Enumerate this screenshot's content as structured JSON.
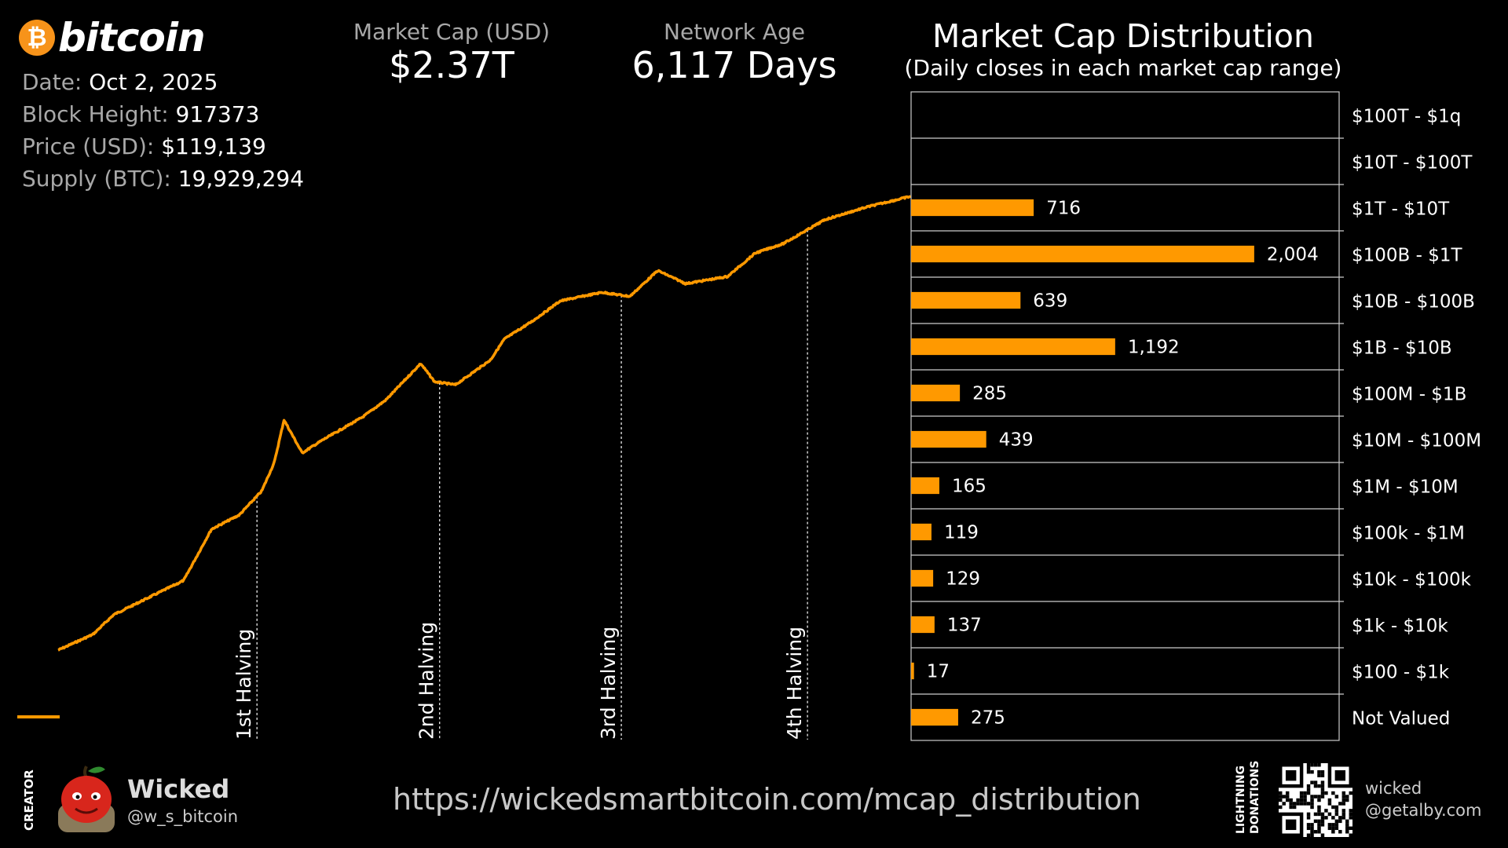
{
  "logo": {
    "symbol": "₿",
    "text": "bitcoin"
  },
  "info": [
    {
      "label": "Date:",
      "value": "Oct 2, 2025"
    },
    {
      "label": "Block Height:",
      "value": "917373"
    },
    {
      "label": "Price (USD):",
      "value": "$119,139"
    },
    {
      "label": "Supply (BTC):",
      "value": "19,929,294"
    }
  ],
  "stats": {
    "market_cap_label": "Market Cap (USD)",
    "market_cap_value": "$2.37T",
    "network_age_label": "Network Age",
    "network_age_value": "6,117 Days"
  },
  "distribution": {
    "title": "Market Cap Distribution",
    "subtitle": "(Daily closes in each market cap range)"
  },
  "colors": {
    "accent": "#ff9900",
    "background": "#000000",
    "muted": "#a8a8a8",
    "grid": "#cccccc"
  },
  "chart_data": [
    {
      "type": "line",
      "title": "",
      "series": [
        {
          "name": "",
          "x": [
            0,
            250,
            400,
            900,
            1100,
            1300,
            1460,
            1550,
            1620,
            1750,
            1900,
            2180,
            2350,
            2600,
            2700,
            2850,
            3100,
            3200,
            3400,
            3600,
            3900,
            4100,
            4300,
            4500,
            4800,
            5000,
            5200,
            5500,
            5800,
            6117
          ],
          "values": [
            0.02,
            0.03,
            0.05,
            0.12,
            0.45,
            0.65,
            1.2,
            2.5,
            7.5,
            3.2,
            4.5,
            8.0,
            12.5,
            32.0,
            20.0,
            18.5,
            35.0,
            60.0,
            95.0,
            160.0,
            200.0,
            180.0,
            350.0,
            250.0,
            300.0,
            550.0,
            700.0,
            1300.0,
            1800.0,
            2370.0
          ]
        }
      ],
      "annotations": [
        "1st Halving",
        "2nd Halving",
        "3rd Halving",
        "4th Halving"
      ],
      "halving_days": [
        1426,
        2736,
        4039,
        5374
      ],
      "y_scale": "log",
      "grid": false
    },
    {
      "type": "bar",
      "orientation": "horizontal",
      "categories": [
        "$100T - $1q",
        "$10T - $100T",
        "$1T - $10T",
        "$100B - $1T",
        "$10B - $100B",
        "$1B - $10B",
        "$100M - $1B",
        "$10M - $100M",
        "$1M - $10M",
        "$100k - $1M",
        "$10k - $100k",
        "$1k - $10k",
        "$100 - $1k",
        "Not Valued"
      ],
      "values": [
        0,
        0,
        716,
        2004,
        639,
        1192,
        285,
        439,
        165,
        119,
        129,
        137,
        17,
        275
      ],
      "value_labels": [
        "",
        "",
        "716",
        "2,004",
        "639",
        "1,192",
        "285",
        "439",
        "165",
        "119",
        "129",
        "137",
        "17",
        "275"
      ],
      "xlim": [
        0,
        2500
      ]
    }
  ],
  "footer": {
    "creator_label": "CREATOR",
    "creator_name": "Wicked",
    "creator_handle": "@w_s_bitcoin",
    "url": "https://wickedsmartbitcoin.com/mcap_distribution",
    "donations_label_1": "LIGHTNING",
    "donations_label_2": "DONATIONS",
    "lightning_address_1": "wicked",
    "lightning_address_2": "@getalby.com"
  }
}
